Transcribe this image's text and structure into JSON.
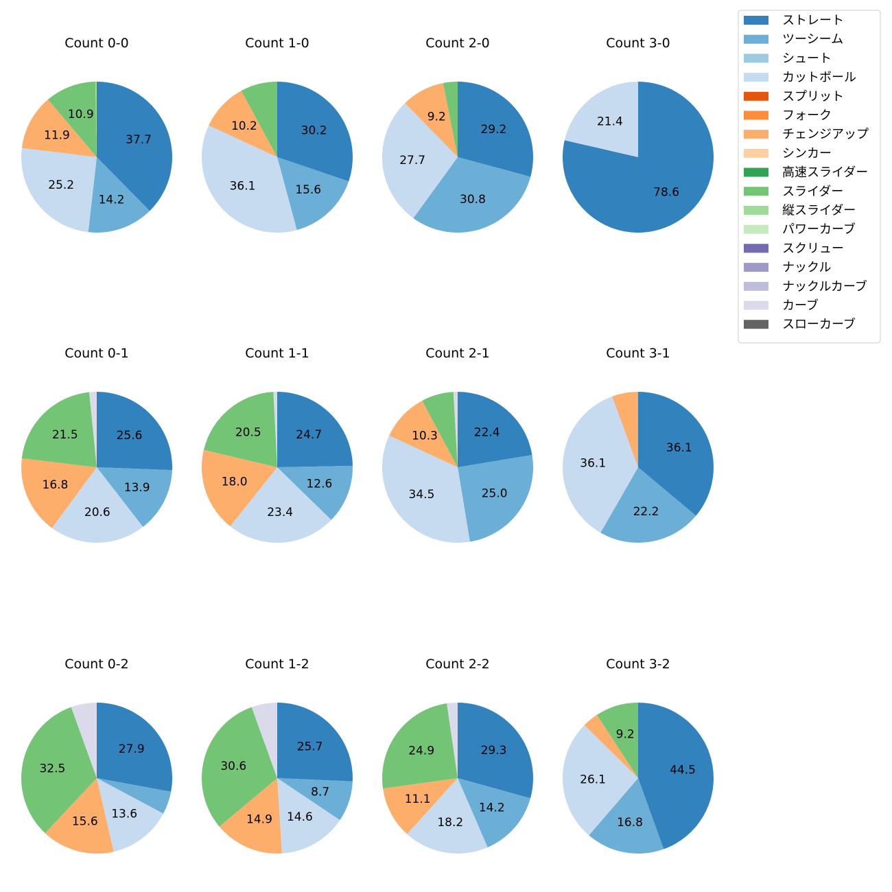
{
  "colors": {
    "ストレート": "#3182bd",
    "ツーシーム": "#6baed6",
    "シュート": "#9ecae1",
    "カットボール": "#c6dbef",
    "スプリット": "#e6550d",
    "フォーク": "#fd8d3c",
    "チェンジアップ": "#fdae6b",
    "シンカー": "#fdd0a2",
    "高速スライダー": "#31a354",
    "スライダー": "#74c476",
    "縦スライダー": "#a1d99b",
    "パワーカーブ": "#c7e9c0",
    "スクリュー": "#756bb1",
    "ナックル": "#9e9ac8",
    "ナックルカーブ": "#bcbddc",
    "カーブ": "#dadaeb",
    "スローカーブ": "#636363"
  },
  "chart_data": {
    "type": "pie",
    "legend": {
      "placement": "top-right",
      "entries": [
        "ストレート",
        "ツーシーム",
        "シュート",
        "カットボール",
        "スプリット",
        "フォーク",
        "チェンジアップ",
        "シンカー",
        "高速スライダー",
        "スライダー",
        "縦スライダー",
        "パワーカーブ",
        "スクリュー",
        "ナックル",
        "ナックルカーブ",
        "カーブ",
        "スローカーブ"
      ]
    },
    "charts": [
      {
        "title": "Count 0-0",
        "slices": [
          {
            "name": "ストレート",
            "value": 37.7,
            "label": "37.7"
          },
          {
            "name": "ツーシーム",
            "value": 14.2,
            "label": "14.2"
          },
          {
            "name": "カットボール",
            "value": 25.2,
            "label": "25.2"
          },
          {
            "name": "チェンジアップ",
            "value": 11.9,
            "label": "11.9"
          },
          {
            "name": "スライダー",
            "value": 10.9,
            "label": "10.9"
          },
          {
            "name": "縦スライダー",
            "value": 0.3,
            "label": ""
          }
        ]
      },
      {
        "title": "Count 1-0",
        "slices": [
          {
            "name": "ストレート",
            "value": 30.2,
            "label": "30.2"
          },
          {
            "name": "ツーシーム",
            "value": 15.6,
            "label": "15.6"
          },
          {
            "name": "カットボール",
            "value": 36.1,
            "label": "36.1"
          },
          {
            "name": "チェンジアップ",
            "value": 10.2,
            "label": "10.2"
          },
          {
            "name": "スライダー",
            "value": 7.9,
            "label": ""
          }
        ]
      },
      {
        "title": "Count 2-0",
        "slices": [
          {
            "name": "ストレート",
            "value": 29.2,
            "label": "29.2"
          },
          {
            "name": "ツーシーム",
            "value": 30.8,
            "label": "30.8"
          },
          {
            "name": "カットボール",
            "value": 27.7,
            "label": "27.7"
          },
          {
            "name": "チェンジアップ",
            "value": 9.2,
            "label": "9.2"
          },
          {
            "name": "スライダー",
            "value": 3.1,
            "label": ""
          }
        ]
      },
      {
        "title": "Count 3-0",
        "slices": [
          {
            "name": "ストレート",
            "value": 78.6,
            "label": "78.6"
          },
          {
            "name": "カットボール",
            "value": 21.4,
            "label": "21.4"
          }
        ]
      },
      {
        "title": "Count 0-1",
        "slices": [
          {
            "name": "ストレート",
            "value": 25.6,
            "label": "25.6"
          },
          {
            "name": "ツーシーム",
            "value": 13.9,
            "label": "13.9"
          },
          {
            "name": "カットボール",
            "value": 20.6,
            "label": "20.6"
          },
          {
            "name": "チェンジアップ",
            "value": 16.8,
            "label": "16.8"
          },
          {
            "name": "スライダー",
            "value": 21.5,
            "label": "21.5"
          },
          {
            "name": "カーブ",
            "value": 1.6,
            "label": ""
          }
        ]
      },
      {
        "title": "Count 1-1",
        "slices": [
          {
            "name": "ストレート",
            "value": 24.7,
            "label": "24.7"
          },
          {
            "name": "ツーシーム",
            "value": 12.6,
            "label": "12.6"
          },
          {
            "name": "カットボール",
            "value": 23.4,
            "label": "23.4"
          },
          {
            "name": "チェンジアップ",
            "value": 18.0,
            "label": "18.0"
          },
          {
            "name": "スライダー",
            "value": 20.5,
            "label": "20.5"
          },
          {
            "name": "カーブ",
            "value": 0.8,
            "label": ""
          }
        ]
      },
      {
        "title": "Count 2-1",
        "slices": [
          {
            "name": "ストレート",
            "value": 22.4,
            "label": "22.4"
          },
          {
            "name": "ツーシーム",
            "value": 25.0,
            "label": "25.0"
          },
          {
            "name": "カットボール",
            "value": 34.5,
            "label": "34.5"
          },
          {
            "name": "チェンジアップ",
            "value": 10.3,
            "label": "10.3"
          },
          {
            "name": "スライダー",
            "value": 6.9,
            "label": ""
          },
          {
            "name": "カーブ",
            "value": 0.9,
            "label": ""
          }
        ]
      },
      {
        "title": "Count 3-1",
        "slices": [
          {
            "name": "ストレート",
            "value": 36.1,
            "label": "36.1"
          },
          {
            "name": "ツーシーム",
            "value": 22.2,
            "label": "22.2"
          },
          {
            "name": "カットボール",
            "value": 36.1,
            "label": "36.1"
          },
          {
            "name": "チェンジアップ",
            "value": 5.6,
            "label": ""
          }
        ]
      },
      {
        "title": "Count 0-2",
        "slices": [
          {
            "name": "ストレート",
            "value": 27.9,
            "label": "27.9"
          },
          {
            "name": "ツーシーム",
            "value": 4.9,
            "label": ""
          },
          {
            "name": "カットボール",
            "value": 13.6,
            "label": "13.6"
          },
          {
            "name": "チェンジアップ",
            "value": 15.6,
            "label": "15.6"
          },
          {
            "name": "スライダー",
            "value": 32.5,
            "label": "32.5"
          },
          {
            "name": "カーブ",
            "value": 5.5,
            "label": ""
          }
        ]
      },
      {
        "title": "Count 1-2",
        "slices": [
          {
            "name": "ストレート",
            "value": 25.7,
            "label": "25.7"
          },
          {
            "name": "ツーシーム",
            "value": 8.7,
            "label": "8.7"
          },
          {
            "name": "カットボール",
            "value": 14.6,
            "label": "14.6"
          },
          {
            "name": "チェンジアップ",
            "value": 14.9,
            "label": "14.9"
          },
          {
            "name": "スライダー",
            "value": 30.6,
            "label": "30.6"
          },
          {
            "name": "カーブ",
            "value": 5.5,
            "label": ""
          }
        ]
      },
      {
        "title": "Count 2-2",
        "slices": [
          {
            "name": "ストレート",
            "value": 29.3,
            "label": "29.3"
          },
          {
            "name": "ツーシーム",
            "value": 14.2,
            "label": "14.2"
          },
          {
            "name": "カットボール",
            "value": 18.2,
            "label": "18.2"
          },
          {
            "name": "チェンジアップ",
            "value": 11.1,
            "label": "11.1"
          },
          {
            "name": "スライダー",
            "value": 24.9,
            "label": "24.9"
          },
          {
            "name": "カーブ",
            "value": 2.3,
            "label": ""
          }
        ]
      },
      {
        "title": "Count 3-2",
        "slices": [
          {
            "name": "ストレート",
            "value": 44.5,
            "label": "44.5"
          },
          {
            "name": "ツーシーム",
            "value": 16.8,
            "label": "16.8"
          },
          {
            "name": "カットボール",
            "value": 26.1,
            "label": "26.1"
          },
          {
            "name": "チェンジアップ",
            "value": 3.4,
            "label": ""
          },
          {
            "name": "スライダー",
            "value": 9.2,
            "label": "9.2"
          }
        ]
      }
    ]
  }
}
